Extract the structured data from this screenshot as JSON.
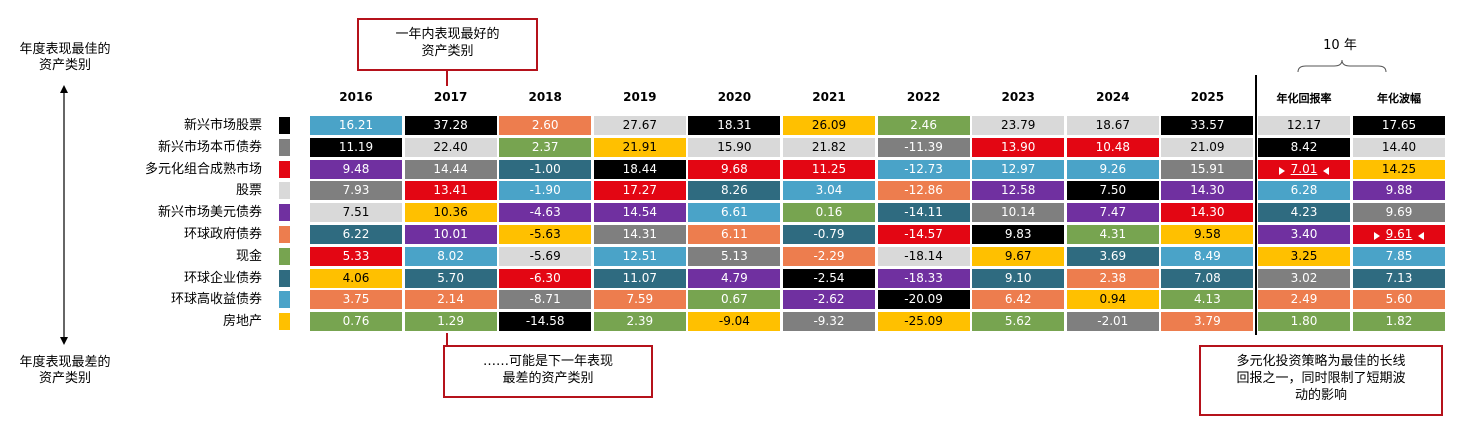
{
  "annotations": {
    "top_axis_label": [
      "年度表现最佳的",
      "资产类别"
    ],
    "bottom_axis_label": [
      "年度表现最差的",
      "资产类别"
    ],
    "best_callout": [
      "一年内表现最好的",
      "资产类别"
    ],
    "worst_callout": [
      "……可能是下一年表现",
      "最差的资产类别"
    ],
    "diversified_callout": [
      "多元化投资策略为最佳的长线",
      "回报之一，同时限制了短期波",
      "动的影响"
    ]
  },
  "asset_classes": [
    {
      "name": "新兴市场股票",
      "color": "#000000"
    },
    {
      "name": "新兴市场本币债券",
      "color": "#7f7f7f"
    },
    {
      "name": "多元化组合成熟市场",
      "color": "#e30613"
    },
    {
      "name": "股票",
      "color": "#d9d9d9"
    },
    {
      "name": "新兴市场美元债券",
      "color": "#7030a0"
    },
    {
      "name": "环球政府债券",
      "color": "#ed7d4e"
    },
    {
      "name": "现金",
      "color": "#77a450"
    },
    {
      "name": "环球企业债券",
      "color": "#2f6b80"
    },
    {
      "name": "环球高收益债券",
      "color": "#4aa3c8"
    },
    {
      "name": "房地产",
      "color": "#ffc000"
    }
  ],
  "years": [
    "2016",
    "2017",
    "2018",
    "2019",
    "2020",
    "2021",
    "2022",
    "2023",
    "2024",
    "2025"
  ],
  "stats_header": "10 年",
  "stats_columns": [
    "年化回报率",
    "年化波幅"
  ],
  "columns": [
    [
      {
        "v": "16.21",
        "c": "#4aa3c8"
      },
      {
        "v": "11.19",
        "c": "#000000"
      },
      {
        "v": "9.48",
        "c": "#7030a0"
      },
      {
        "v": "7.93",
        "c": "#7f7f7f"
      },
      {
        "v": "7.51",
        "c": "#d9d9d9"
      },
      {
        "v": "6.22",
        "c": "#2f6b80"
      },
      {
        "v": "5.33",
        "c": "#e30613"
      },
      {
        "v": "4.06",
        "c": "#ffc000"
      },
      {
        "v": "3.75",
        "c": "#ed7d4e"
      },
      {
        "v": "0.76",
        "c": "#77a450"
      }
    ],
    [
      {
        "v": "37.28",
        "c": "#000000"
      },
      {
        "v": "22.40",
        "c": "#d9d9d9"
      },
      {
        "v": "14.44",
        "c": "#7f7f7f"
      },
      {
        "v": "13.41",
        "c": "#e30613"
      },
      {
        "v": "10.36",
        "c": "#ffc000"
      },
      {
        "v": "10.01",
        "c": "#7030a0"
      },
      {
        "v": "8.02",
        "c": "#4aa3c8"
      },
      {
        "v": "5.70",
        "c": "#2f6b80"
      },
      {
        "v": "2.14",
        "c": "#ed7d4e"
      },
      {
        "v": "1.29",
        "c": "#77a450"
      }
    ],
    [
      {
        "v": "2.60",
        "c": "#ed7d4e"
      },
      {
        "v": "2.37",
        "c": "#77a450"
      },
      {
        "v": "-1.00",
        "c": "#2f6b80"
      },
      {
        "v": "-1.90",
        "c": "#4aa3c8"
      },
      {
        "v": "-4.63",
        "c": "#7030a0"
      },
      {
        "v": "-5.63",
        "c": "#ffc000"
      },
      {
        "v": "-5.69",
        "c": "#d9d9d9"
      },
      {
        "v": "-6.30",
        "c": "#e30613"
      },
      {
        "v": "-8.71",
        "c": "#7f7f7f"
      },
      {
        "v": "-14.58",
        "c": "#000000"
      }
    ],
    [
      {
        "v": "27.67",
        "c": "#d9d9d9"
      },
      {
        "v": "21.91",
        "c": "#ffc000"
      },
      {
        "v": "18.44",
        "c": "#000000"
      },
      {
        "v": "17.27",
        "c": "#e30613"
      },
      {
        "v": "14.54",
        "c": "#7030a0"
      },
      {
        "v": "14.31",
        "c": "#7f7f7f"
      },
      {
        "v": "12.51",
        "c": "#4aa3c8"
      },
      {
        "v": "11.07",
        "c": "#2f6b80"
      },
      {
        "v": "7.59",
        "c": "#ed7d4e"
      },
      {
        "v": "2.39",
        "c": "#77a450"
      }
    ],
    [
      {
        "v": "18.31",
        "c": "#000000"
      },
      {
        "v": "15.90",
        "c": "#d9d9d9"
      },
      {
        "v": "9.68",
        "c": "#e30613"
      },
      {
        "v": "8.26",
        "c": "#2f6b80"
      },
      {
        "v": "6.61",
        "c": "#4aa3c8"
      },
      {
        "v": "6.11",
        "c": "#ed7d4e"
      },
      {
        "v": "5.13",
        "c": "#7f7f7f"
      },
      {
        "v": "4.79",
        "c": "#7030a0"
      },
      {
        "v": "0.67",
        "c": "#77a450"
      },
      {
        "v": "-9.04",
        "c": "#ffc000"
      }
    ],
    [
      {
        "v": "26.09",
        "c": "#ffc000"
      },
      {
        "v": "21.82",
        "c": "#d9d9d9"
      },
      {
        "v": "11.25",
        "c": "#e30613"
      },
      {
        "v": "3.04",
        "c": "#4aa3c8"
      },
      {
        "v": "0.16",
        "c": "#77a450"
      },
      {
        "v": "-0.79",
        "c": "#2f6b80"
      },
      {
        "v": "-2.29",
        "c": "#ed7d4e"
      },
      {
        "v": "-2.54",
        "c": "#000000"
      },
      {
        "v": "-2.62",
        "c": "#7030a0"
      },
      {
        "v": "-9.32",
        "c": "#7f7f7f"
      }
    ],
    [
      {
        "v": "2.46",
        "c": "#77a450"
      },
      {
        "v": "-11.39",
        "c": "#7f7f7f"
      },
      {
        "v": "-12.73",
        "c": "#4aa3c8"
      },
      {
        "v": "-12.86",
        "c": "#ed7d4e"
      },
      {
        "v": "-14.11",
        "c": "#2f6b80"
      },
      {
        "v": "-14.57",
        "c": "#e30613"
      },
      {
        "v": "-18.14",
        "c": "#d9d9d9"
      },
      {
        "v": "-18.33",
        "c": "#7030a0"
      },
      {
        "v": "-20.09",
        "c": "#000000"
      },
      {
        "v": "-25.09",
        "c": "#ffc000"
      }
    ],
    [
      {
        "v": "23.79",
        "c": "#d9d9d9"
      },
      {
        "v": "13.90",
        "c": "#e30613"
      },
      {
        "v": "12.97",
        "c": "#4aa3c8"
      },
      {
        "v": "12.58",
        "c": "#7030a0"
      },
      {
        "v": "10.14",
        "c": "#7f7f7f"
      },
      {
        "v": "9.83",
        "c": "#000000"
      },
      {
        "v": "9.67",
        "c": "#ffc000"
      },
      {
        "v": "9.10",
        "c": "#2f6b80"
      },
      {
        "v": "6.42",
        "c": "#ed7d4e"
      },
      {
        "v": "5.62",
        "c": "#77a450"
      }
    ],
    [
      {
        "v": "18.67",
        "c": "#d9d9d9"
      },
      {
        "v": "10.48",
        "c": "#e30613"
      },
      {
        "v": "9.26",
        "c": "#4aa3c8"
      },
      {
        "v": "7.50",
        "c": "#000000"
      },
      {
        "v": "7.47",
        "c": "#7030a0"
      },
      {
        "v": "4.31",
        "c": "#77a450"
      },
      {
        "v": "3.69",
        "c": "#2f6b80"
      },
      {
        "v": "2.38",
        "c": "#ed7d4e"
      },
      {
        "v": "0.94",
        "c": "#ffc000"
      },
      {
        "v": "-2.01",
        "c": "#7f7f7f"
      }
    ],
    [
      {
        "v": "33.57",
        "c": "#000000"
      },
      {
        "v": "21.09",
        "c": "#d9d9d9"
      },
      {
        "v": "15.91",
        "c": "#7f7f7f"
      },
      {
        "v": "14.30",
        "c": "#7030a0"
      },
      {
        "v": "14.30",
        "c": "#e30613"
      },
      {
        "v": "9.58",
        "c": "#ffc000"
      },
      {
        "v": "8.49",
        "c": "#4aa3c8"
      },
      {
        "v": "7.08",
        "c": "#2f6b80"
      },
      {
        "v": "4.13",
        "c": "#77a450"
      },
      {
        "v": "3.79",
        "c": "#ed7d4e"
      }
    ],
    [
      {
        "v": "12.17",
        "c": "#d9d9d9"
      },
      {
        "v": "8.42",
        "c": "#000000"
      },
      {
        "v": "7.01",
        "c": "#e30613",
        "highlight": true
      },
      {
        "v": "6.28",
        "c": "#4aa3c8"
      },
      {
        "v": "4.23",
        "c": "#2f6b80"
      },
      {
        "v": "3.40",
        "c": "#7030a0"
      },
      {
        "v": "3.25",
        "c": "#ffc000"
      },
      {
        "v": "3.02",
        "c": "#7f7f7f"
      },
      {
        "v": "2.49",
        "c": "#ed7d4e"
      },
      {
        "v": "1.80",
        "c": "#77a450"
      }
    ],
    [
      {
        "v": "17.65",
        "c": "#000000"
      },
      {
        "v": "14.40",
        "c": "#d9d9d9"
      },
      {
        "v": "14.25",
        "c": "#ffc000"
      },
      {
        "v": "9.88",
        "c": "#7030a0"
      },
      {
        "v": "9.69",
        "c": "#7f7f7f"
      },
      {
        "v": "9.61",
        "c": "#e30613",
        "highlight": true
      },
      {
        "v": "7.85",
        "c": "#4aa3c8"
      },
      {
        "v": "7.13",
        "c": "#2f6b80"
      },
      {
        "v": "5.60",
        "c": "#ed7d4e"
      },
      {
        "v": "1.82",
        "c": "#77a450"
      }
    ]
  ]
}
